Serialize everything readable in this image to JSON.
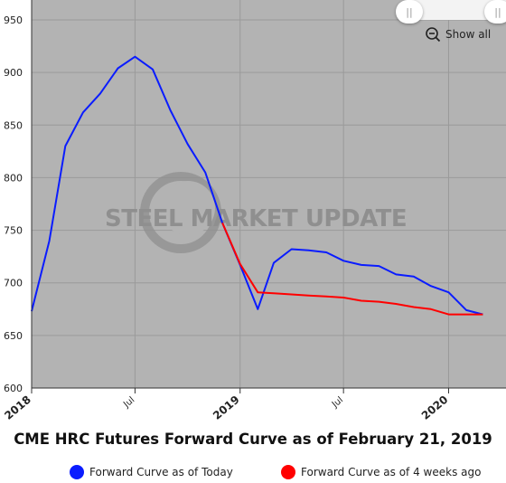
{
  "chart_data": {
    "type": "line",
    "title": "CME HRC Futures Forward Curve as of February 21, 2019",
    "watermark": "STEEL MARKET UPDATE",
    "ylim": [
      600,
      950
    ],
    "yticks": [
      600,
      650,
      700,
      750,
      800,
      850,
      900,
      950
    ],
    "xlim": [
      "2018-01-01",
      "2020-04-01"
    ],
    "xticks": [
      {
        "label": "2018",
        "date": "2018-01-01",
        "bold": true
      },
      {
        "label": "Jul",
        "date": "2018-07-01",
        "bold": false
      },
      {
        "label": "2019",
        "date": "2019-01-01",
        "bold": true
      },
      {
        "label": "Jul",
        "date": "2019-07-01",
        "bold": false
      },
      {
        "label": "2020",
        "date": "2020-01-01",
        "bold": true
      }
    ],
    "grid": true,
    "legend_position": "bottom",
    "series": [
      {
        "name": "Forward Curve as of Today",
        "color": "#0a1cff",
        "x": [
          "2018-01-01",
          "2018-02-01",
          "2018-03-01",
          "2018-04-01",
          "2018-05-01",
          "2018-06-01",
          "2018-07-01",
          "2018-08-01",
          "2018-09-01",
          "2018-10-01",
          "2018-11-01",
          "2018-12-01",
          "2019-01-01",
          "2019-02-01",
          "2019-03-01",
          "2019-04-01",
          "2019-05-01",
          "2019-06-01",
          "2019-07-01",
          "2019-08-01",
          "2019-09-01",
          "2019-10-01",
          "2019-11-01",
          "2019-12-01",
          "2020-01-01",
          "2020-02-01",
          "2020-03-01"
        ],
        "values": [
          673,
          740,
          830,
          862,
          880,
          904,
          915,
          903,
          864,
          832,
          805,
          757,
          717,
          675,
          719,
          732,
          731,
          729,
          721,
          717,
          716,
          708,
          706,
          697,
          691,
          674,
          670
        ]
      },
      {
        "name": "Forward Curve as of 4 weeks ago",
        "color": "#ff0000",
        "x": [
          "2018-12-01",
          "2019-01-01",
          "2019-02-01",
          "2019-03-01",
          "2019-04-01",
          "2019-05-01",
          "2019-06-01",
          "2019-07-01",
          "2019-08-01",
          "2019-09-01",
          "2019-10-01",
          "2019-11-01",
          "2019-12-01",
          "2020-01-01",
          "2020-02-01",
          "2020-03-01"
        ],
        "values": [
          757,
          718,
          691,
          690,
          689,
          688,
          687,
          686,
          683,
          682,
          680,
          677,
          675,
          670,
          670,
          670
        ]
      }
    ]
  },
  "controls": {
    "show_all_label": "Show all"
  }
}
